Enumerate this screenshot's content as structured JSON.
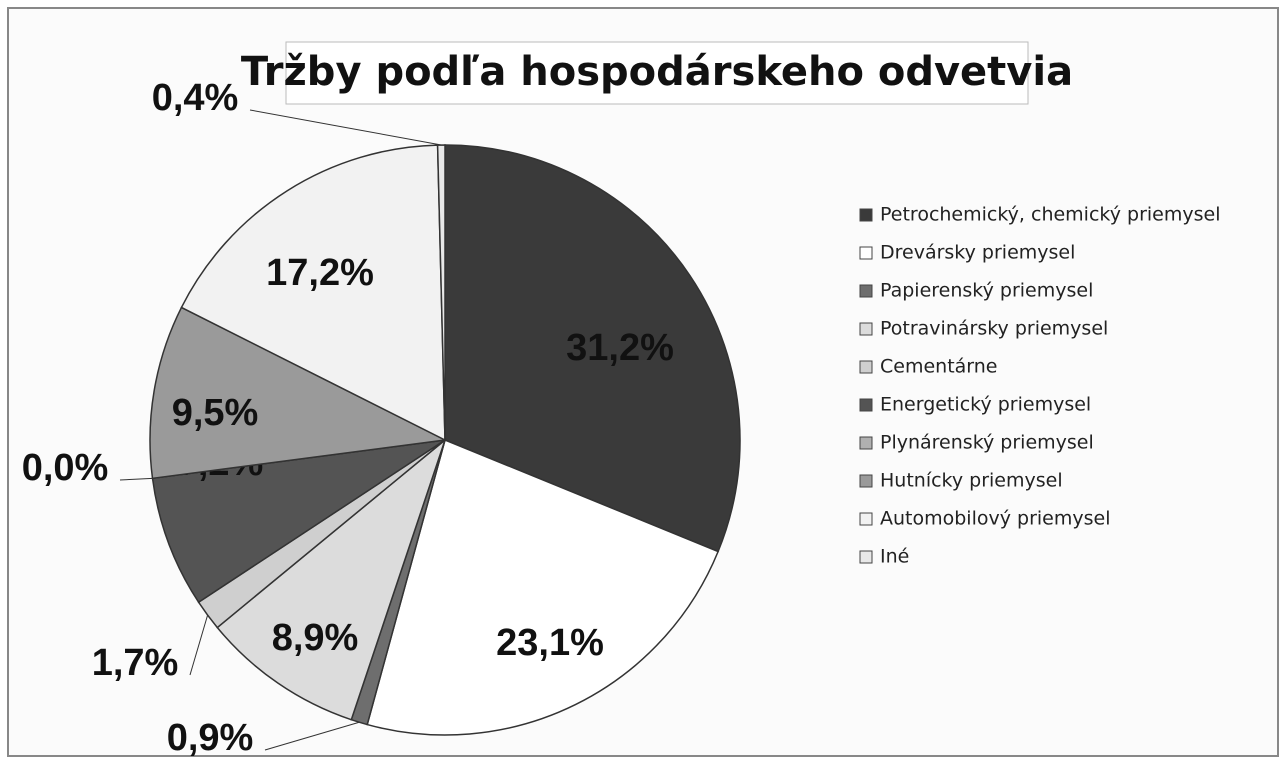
{
  "chart_data": {
    "type": "pie",
    "title": "Tržby podľa hospodárskeho odvetvia",
    "categories": [
      "Petrochemický, chemický priemysel",
      "Drevársky priemysel",
      "Papierenský priemysel",
      "Potravinársky priemysel",
      "Cementárne",
      "Energetický priemysel",
      "Plynárenský priemysel",
      "Hutnícky priemysel",
      "Automobilový priemysel",
      "Iné"
    ],
    "values": [
      31.2,
      23.1,
      0.9,
      8.9,
      1.7,
      7.2,
      0.0,
      9.5,
      17.2,
      0.4
    ],
    "value_labels": [
      "31,2%",
      "23,1%",
      "0,9%",
      "8,9%",
      "1,7%",
      "7,2%",
      "0,0%",
      "9,5%",
      "17,2%",
      "0,4%"
    ],
    "colors": [
      "#3a3a3a",
      "#ffffff",
      "#6e6e6e",
      "#dcdcdc",
      "#cfcfcf",
      "#545454",
      "#b0b0b0",
      "#9a9a9a",
      "#f2f2f2",
      "#e8e8e8"
    ],
    "legend": "right"
  }
}
